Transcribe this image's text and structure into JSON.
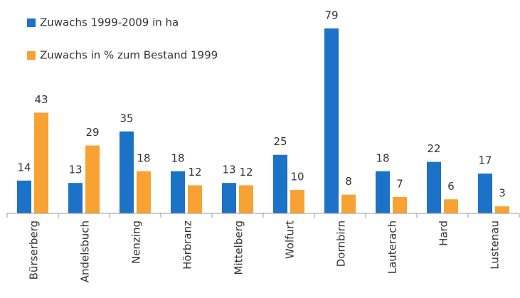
{
  "chart_data": {
    "type": "bar",
    "categories": [
      "Bürserberg",
      "Andelsbuch",
      "Nenzing",
      "Hörbranz",
      "Mittelberg",
      "Wolfurt",
      "Dornbirn",
      "Lauterach",
      "Hard",
      "Lustenau"
    ],
    "series": [
      {
        "name": "Zuwachs 1999-2009 in ha",
        "color": "#1c72c6",
        "values": [
          14,
          13,
          35,
          18,
          13,
          25,
          79,
          18,
          22,
          17
        ]
      },
      {
        "name": "Zuwachs in % zum Bestand 1999",
        "color": "#f7a233",
        "values": [
          43,
          29,
          18,
          12,
          12,
          10,
          8,
          7,
          6,
          3
        ]
      }
    ],
    "legend": "top-left"
  }
}
